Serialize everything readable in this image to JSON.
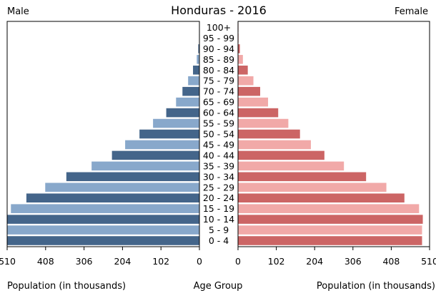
{
  "chart_data": {
    "type": "bar",
    "title": "Honduras - 2016",
    "left_label": "Male",
    "right_label": "Female",
    "xlabel_left": "Population (in thousands)",
    "xlabel_center": "Age Group",
    "xlabel_right": "Population (in thousands)",
    "xlim": [
      0,
      510
    ],
    "x_ticks_left": [
      "510",
      "408",
      "306",
      "204",
      "102",
      "0"
    ],
    "x_ticks_right": [
      "0",
      "102",
      "204",
      "306",
      "408",
      "510"
    ],
    "categories": [
      "0 - 4",
      "5 - 9",
      "10 - 14",
      "15 - 19",
      "20 - 24",
      "25 - 29",
      "30 - 34",
      "35 - 39",
      "40 - 44",
      "45 - 49",
      "50 - 54",
      "55 - 59",
      "60 - 64",
      "65 - 69",
      "70 - 74",
      "75 - 79",
      "80 - 84",
      "85 - 89",
      "90 - 94",
      "95 - 99",
      "100+"
    ],
    "series": [
      {
        "name": "Male",
        "values": [
          510,
          510,
          510,
          500,
          459,
          409,
          353,
          286,
          232,
          197,
          159,
          123,
          88,
          62,
          45,
          30,
          17,
          7,
          3,
          1,
          0.3
        ]
      },
      {
        "name": "Female",
        "values": [
          490,
          490,
          492,
          482,
          443,
          395,
          341,
          282,
          230,
          194,
          165,
          134,
          107,
          80,
          59,
          41,
          26,
          13,
          5,
          1.5,
          0.5
        ]
      }
    ],
    "colors": {
      "male_dark": "#44658a",
      "male_light": "#88a8cb",
      "female_dark": "#cc6565",
      "female_light": "#f1a9a8",
      "axis": "#000000",
      "background": "#ffffff"
    },
    "grid": false,
    "legend": "none"
  }
}
